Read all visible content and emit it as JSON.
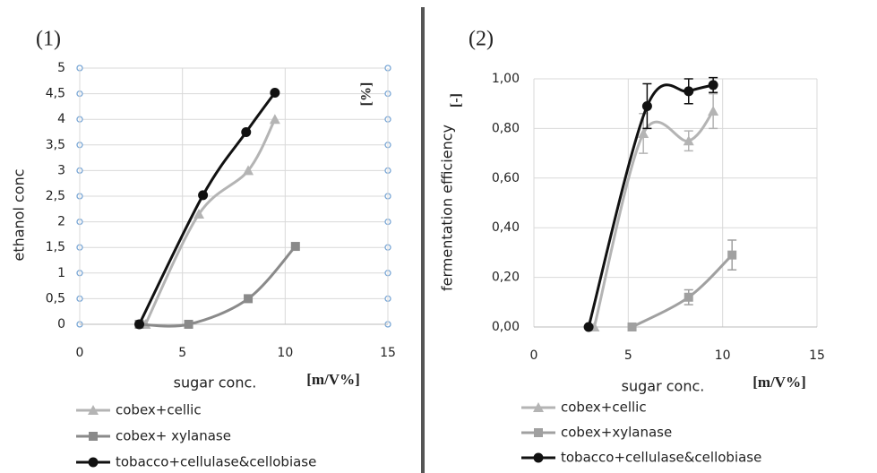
{
  "chart_data": [
    {
      "type": "line",
      "label": "(1)",
      "y_label": "ethanol conc",
      "y_unit": "[%]",
      "x_label": "sugar conc.",
      "x_unit": "[m/V%]",
      "xlim": [
        0,
        15
      ],
      "xticks": [
        0,
        5,
        10,
        15
      ],
      "ylim": [
        0,
        5
      ],
      "yticks": [
        0,
        {
          "value": 0.5,
          "label": "0,5"
        },
        1,
        {
          "value": 1.5,
          "label": "1,5"
        },
        2,
        {
          "value": 2.5,
          "label": "2,5"
        },
        3,
        {
          "value": 3.5,
          "label": "3,5"
        },
        4,
        {
          "value": 4.5,
          "label": "4,5"
        },
        5
      ],
      "grid": true,
      "axis_markers": "#7aa7d6",
      "series": [
        {
          "name": "cobex+cellic",
          "color": "#b4b4b4",
          "marker": "triangle",
          "x": [
            3.2,
            5.8,
            8.2,
            9.5
          ],
          "values": [
            0,
            2.15,
            3.0,
            4.0
          ]
        },
        {
          "name": "cobex+ xylanase",
          "color": "#8a8a8a",
          "marker": "square",
          "x": [
            2.9,
            5.3,
            8.2,
            10.5
          ],
          "values": [
            0,
            0,
            0.5,
            1.52
          ]
        },
        {
          "name": "tobacco+cellulase&cellobiase",
          "color": "#111111",
          "marker": "circle",
          "x": [
            2.9,
            6.0,
            8.1,
            9.5
          ],
          "values": [
            0,
            2.52,
            3.75,
            4.52
          ]
        }
      ]
    },
    {
      "type": "line",
      "label": "(2)",
      "y_label": "fermentation efficiency",
      "y_unit": "[-]",
      "x_label": "sugar conc.",
      "x_unit": "[m/V%]",
      "xlim": [
        0,
        15
      ],
      "xticks": [
        0,
        5,
        10,
        15
      ],
      "ylim": [
        0,
        1
      ],
      "yticks": [
        {
          "value": 0,
          "label": "0,00"
        },
        {
          "value": 0.2,
          "label": "0,20"
        },
        {
          "value": 0.4,
          "label": "0,40"
        },
        {
          "value": 0.6,
          "label": "0,60"
        },
        {
          "value": 0.8,
          "label": "0,80"
        },
        {
          "value": 1,
          "label": "1,00"
        }
      ],
      "grid": true,
      "series": [
        {
          "name": "cobex+cellic",
          "color": "#b4b4b4",
          "marker": "triangle",
          "x": [
            3.2,
            5.8,
            8.2,
            9.5
          ],
          "values": [
            0,
            0.78,
            0.75,
            0.87
          ],
          "errors": [
            null,
            0.08,
            0.04,
            0.07
          ]
        },
        {
          "name": "cobex+xylanase",
          "color": "#a0a0a0",
          "marker": "square",
          "x": [
            5.2,
            8.2,
            10.5
          ],
          "values": [
            0,
            0.12,
            0.29
          ],
          "errors": [
            null,
            0.03,
            0.06
          ]
        },
        {
          "name": "tobacco+cellulase&cellobiase",
          "color": "#111111",
          "marker": "circle",
          "x": [
            2.9,
            6.0,
            8.2,
            9.5
          ],
          "values": [
            0,
            0.89,
            0.95,
            0.975
          ],
          "errors": [
            null,
            0.09,
            0.05,
            0.03
          ]
        }
      ]
    }
  ]
}
